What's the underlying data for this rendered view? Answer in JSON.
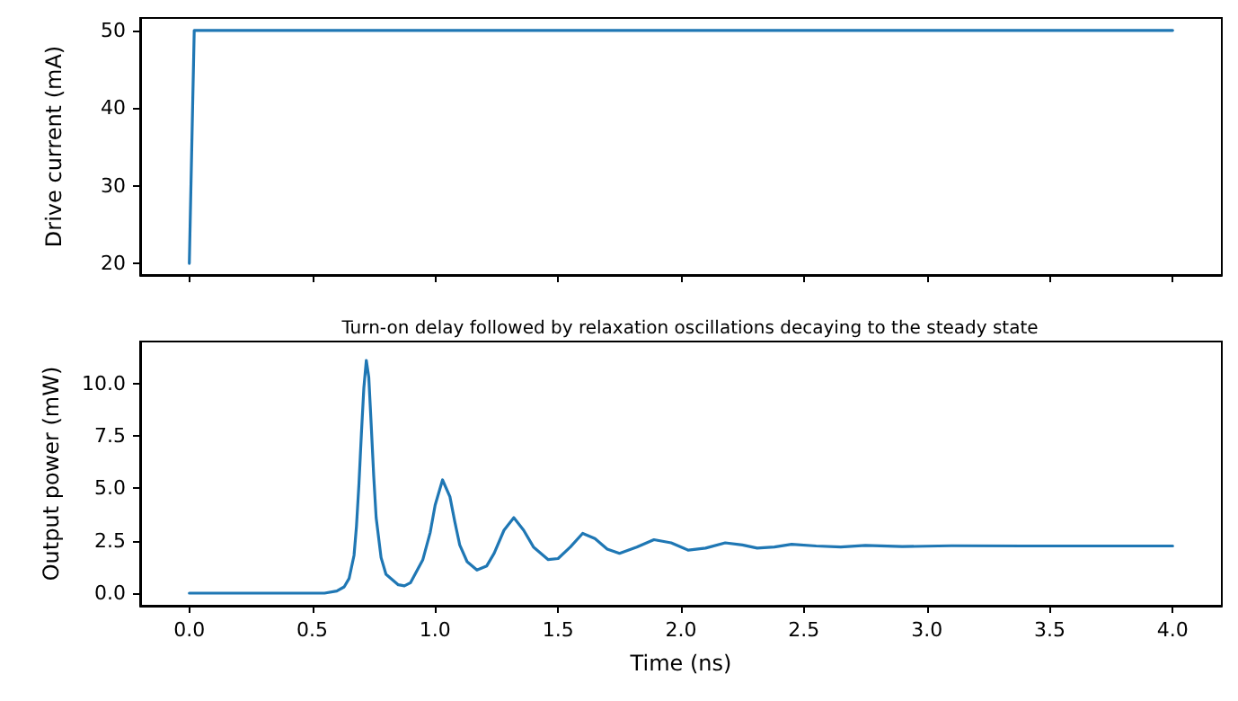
{
  "chart_data": [
    {
      "type": "line",
      "ylabel": "Drive current (mA)",
      "x": [
        0,
        0.02,
        4.0
      ],
      "series": [
        {
          "color": "#1f77b4",
          "values": [
            20,
            50,
            50
          ]
        }
      ],
      "xlim": [
        -0.2,
        4.2
      ],
      "xticks": [
        {
          "value": 0,
          "label": null
        },
        {
          "value": 0.5,
          "label": null
        },
        {
          "value": 1,
          "label": null
        },
        {
          "value": 1.5,
          "label": null
        },
        {
          "value": 2,
          "label": null
        },
        {
          "value": 2.5,
          "label": null
        },
        {
          "value": 3,
          "label": null
        },
        {
          "value": 3.5,
          "label": null
        },
        {
          "value": 4,
          "label": null
        }
      ],
      "ylim": [
        18.5,
        51.6
      ],
      "yticks": [
        20,
        30,
        40,
        50
      ],
      "tick_labels": "y",
      "grid": false,
      "marker": "none",
      "line_style": "solid"
    },
    {
      "type": "line",
      "title": "Turn-on delay followed by relaxation oscillations decaying to the steady state",
      "xlabel": "Time (ns)",
      "ylabel": "Output power (mW)",
      "x": [
        0,
        0.3,
        0.55,
        0.6,
        0.63,
        0.65,
        0.67,
        0.68,
        0.69,
        0.7,
        0.71,
        0.72,
        0.73,
        0.74,
        0.75,
        0.76,
        0.78,
        0.8,
        0.85,
        0.875,
        0.9,
        0.95,
        0.98,
        1.0,
        1.03,
        1.06,
        1.08,
        1.1,
        1.13,
        1.17,
        1.21,
        1.24,
        1.28,
        1.32,
        1.36,
        1.4,
        1.46,
        1.5,
        1.55,
        1.6,
        1.65,
        1.7,
        1.75,
        1.82,
        1.89,
        1.96,
        2.03,
        2.1,
        2.18,
        2.25,
        2.31,
        2.38,
        2.45,
        2.55,
        2.65,
        2.75,
        2.9,
        3.1,
        3.4,
        3.7,
        4.0
      ],
      "series": [
        {
          "color": "#1f77b4",
          "values": [
            0,
            0,
            0,
            0.1,
            0.3,
            0.7,
            1.8,
            3.2,
            5.2,
            7.6,
            9.8,
            11.1,
            10.3,
            8.0,
            5.6,
            3.6,
            1.7,
            0.9,
            0.4,
            0.35,
            0.5,
            1.6,
            2.9,
            4.2,
            5.4,
            4.6,
            3.4,
            2.3,
            1.5,
            1.1,
            1.3,
            1.9,
            3.0,
            3.6,
            3.0,
            2.2,
            1.6,
            1.65,
            2.2,
            2.85,
            2.6,
            2.1,
            1.9,
            2.2,
            2.55,
            2.4,
            2.05,
            2.15,
            2.4,
            2.3,
            2.15,
            2.2,
            2.33,
            2.25,
            2.2,
            2.28,
            2.22,
            2.26,
            2.25,
            2.25,
            2.25
          ]
        }
      ],
      "xlim": [
        -0.2,
        4.2
      ],
      "xticks": [
        {
          "value": 0,
          "label": "0.0"
        },
        {
          "value": 0.5,
          "label": "0.5"
        },
        {
          "value": 1,
          "label": "1.0"
        },
        {
          "value": 1.5,
          "label": "1.5"
        },
        {
          "value": 2,
          "label": "2.0"
        },
        {
          "value": 2.5,
          "label": "2.5"
        },
        {
          "value": 3,
          "label": "3.0"
        },
        {
          "value": 3.5,
          "label": "3.5"
        },
        {
          "value": 4,
          "label": "4.0"
        }
      ],
      "ylim": [
        -0.6,
        12.0
      ],
      "yticks": [
        {
          "value": 0,
          "label": "0.0"
        },
        {
          "value": 2.5,
          "label": "2.5"
        },
        {
          "value": 5,
          "label": "5.0"
        },
        {
          "value": 7.5,
          "label": "7.5"
        },
        {
          "value": 10,
          "label": "10.0"
        }
      ],
      "grid": false,
      "marker": "none",
      "line_style": "solid"
    }
  ]
}
